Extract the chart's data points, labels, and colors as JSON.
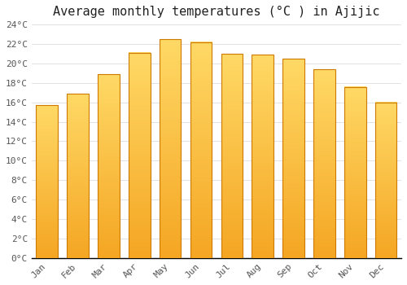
{
  "months": [
    "Jan",
    "Feb",
    "Mar",
    "Apr",
    "May",
    "Jun",
    "Jul",
    "Aug",
    "Sep",
    "Oct",
    "Nov",
    "Dec"
  ],
  "values": [
    15.7,
    16.9,
    18.9,
    21.1,
    22.5,
    22.2,
    21.0,
    20.9,
    20.5,
    19.4,
    17.6,
    16.0
  ],
  "title": "Average monthly temperatures (°C ) in Ajijic",
  "ylim": [
    0,
    24
  ],
  "ytick_step": 2,
  "bar_color_bottom": "#F5A623",
  "bar_color_top": "#FFD966",
  "bar_edge_color": "#CC7A00",
  "background_color": "#FFFFFF",
  "grid_color": "#DDDDDD",
  "title_fontsize": 11,
  "tick_fontsize": 8,
  "font_family": "monospace"
}
